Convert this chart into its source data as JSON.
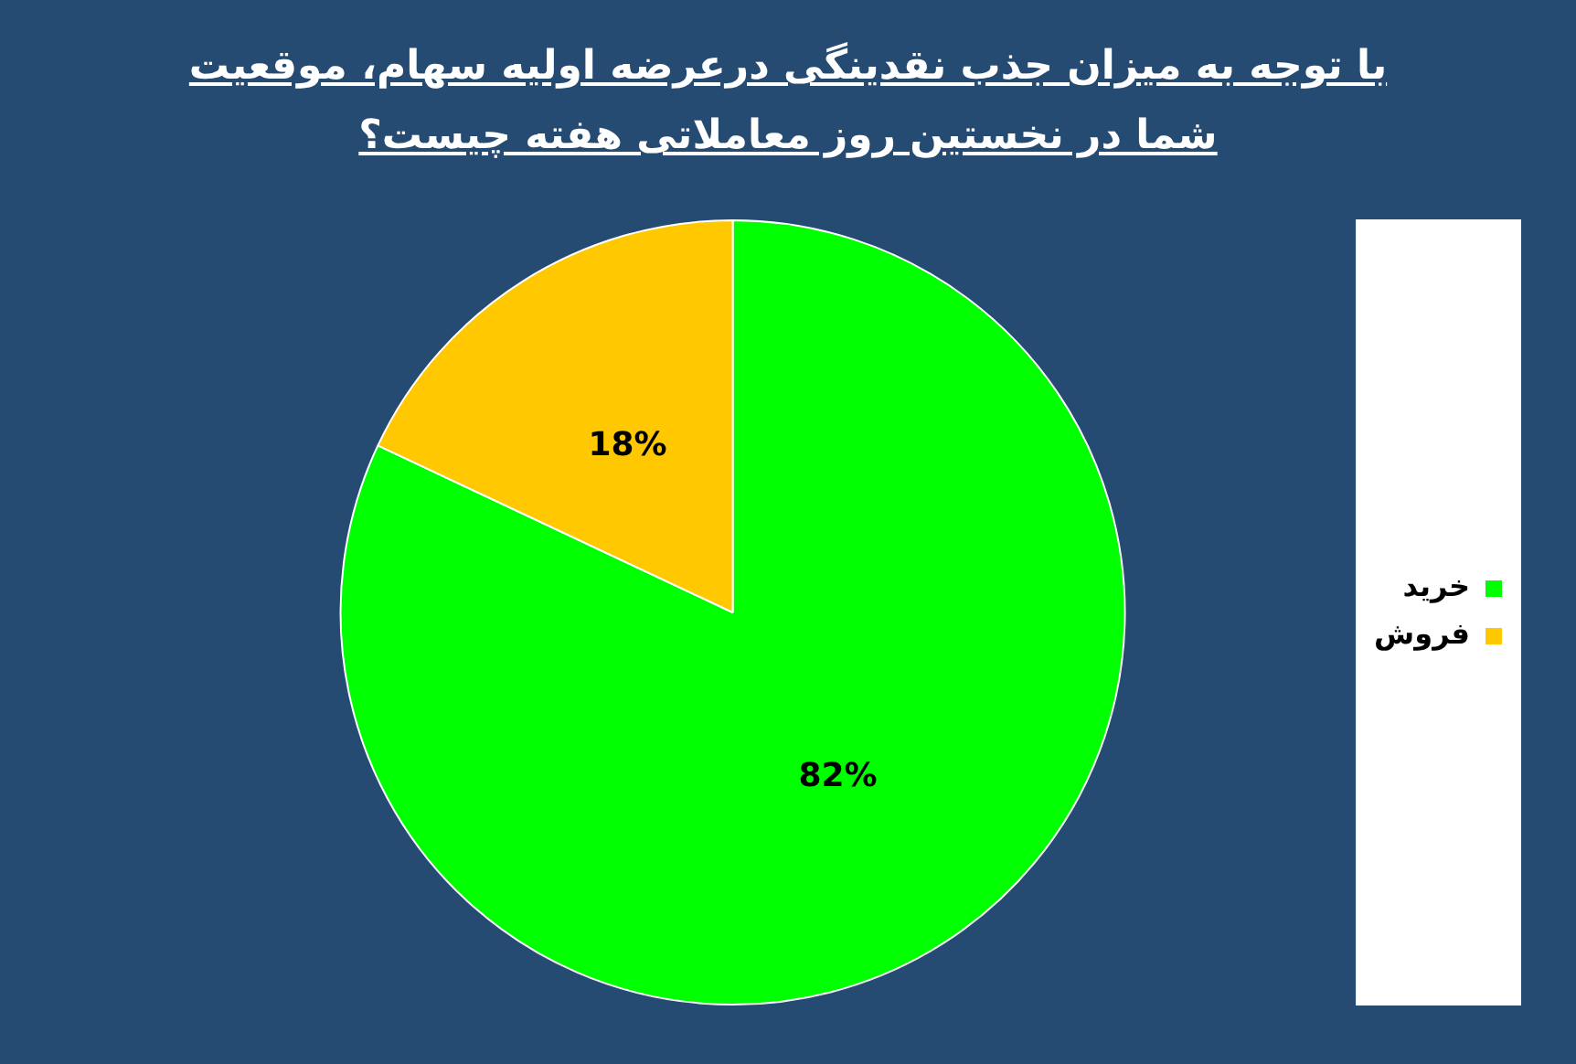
{
  "chart_data": {
    "type": "pie",
    "title": "با توجه به میزان جذب نقدینگی درعرضه اولیه سهام، موقعیت شما در نخستین روز معاملاتی هفته چیست؟",
    "categories": [
      "خرید",
      "فروش"
    ],
    "values": [
      82,
      18
    ],
    "colors": [
      "#00ff00",
      "#ffc800"
    ],
    "value_labels": [
      "82%",
      "18%"
    ],
    "legend": "right"
  }
}
